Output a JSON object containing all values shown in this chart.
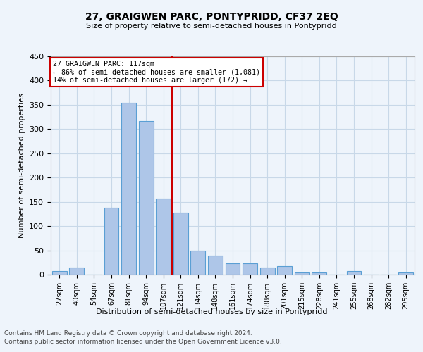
{
  "title": "27, GRAIGWEN PARC, PONTYPRIDD, CF37 2EQ",
  "subtitle": "Size of property relative to semi-detached houses in Pontypridd",
  "xlabel": "Distribution of semi-detached houses by size in Pontypridd",
  "ylabel": "Number of semi-detached properties",
  "footnote1": "Contains HM Land Registry data © Crown copyright and database right 2024.",
  "footnote2": "Contains public sector information licensed under the Open Government Licence v3.0.",
  "bar_labels": [
    "27sqm",
    "40sqm",
    "54sqm",
    "67sqm",
    "81sqm",
    "94sqm",
    "107sqm",
    "121sqm",
    "134sqm",
    "148sqm",
    "161sqm",
    "174sqm",
    "188sqm",
    "201sqm",
    "215sqm",
    "228sqm",
    "241sqm",
    "255sqm",
    "268sqm",
    "282sqm",
    "295sqm"
  ],
  "bar_values": [
    7,
    14,
    0,
    138,
    354,
    316,
    157,
    128,
    50,
    39,
    23,
    23,
    14,
    17,
    5,
    5,
    0,
    7,
    0,
    0,
    4
  ],
  "bar_color": "#aec6e8",
  "bar_edge_color": "#5a9fd4",
  "vline_index": 7,
  "annotation_title": "27 GRAIGWEN PARC: 117sqm",
  "annotation_line1": "← 86% of semi-detached houses are smaller (1,081)",
  "annotation_line2": "14% of semi-detached houses are larger (172) →",
  "annotation_box_color": "#ffffff",
  "annotation_box_edge_color": "#cc0000",
  "vline_color": "#cc0000",
  "grid_color": "#c8d8e8",
  "background_color": "#eef4fb",
  "ylim": [
    0,
    450
  ],
  "yticks": [
    0,
    50,
    100,
    150,
    200,
    250,
    300,
    350,
    400,
    450
  ]
}
